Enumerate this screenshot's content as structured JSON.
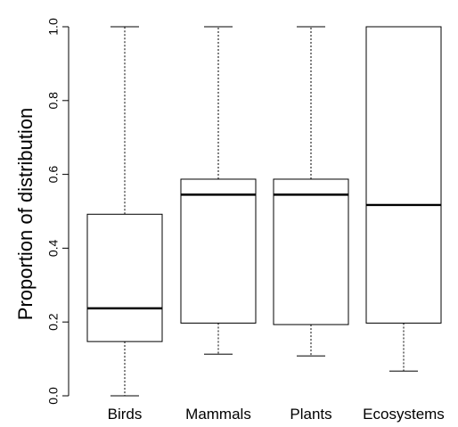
{
  "chart_data": {
    "type": "boxplot",
    "ylabel": "Proportion of distribution",
    "ylim": [
      0,
      1
    ],
    "yticks": [
      "0.0",
      "0.2",
      "0.4",
      "0.6",
      "0.8",
      "1.0"
    ],
    "categories": [
      "Birds",
      "Mammals",
      "Plants",
      "Ecosystems"
    ],
    "boxes": [
      {
        "category": "Birds",
        "whisker_low": 0.0,
        "q1": 0.147,
        "median": 0.237,
        "q3": 0.492,
        "whisker_high": 1.0
      },
      {
        "category": "Mammals",
        "whisker_low": 0.113,
        "q1": 0.197,
        "median": 0.545,
        "q3": 0.587,
        "whisker_high": 1.0
      },
      {
        "category": "Plants",
        "whisker_low": 0.108,
        "q1": 0.193,
        "median": 0.545,
        "q3": 0.587,
        "whisker_high": 1.0
      },
      {
        "category": "Ecosystems",
        "whisker_low": 0.067,
        "q1": 0.197,
        "median": 0.517,
        "q3": 1.0,
        "whisker_high": 1.0
      }
    ],
    "grid": false,
    "whisker_style": "dotted"
  }
}
